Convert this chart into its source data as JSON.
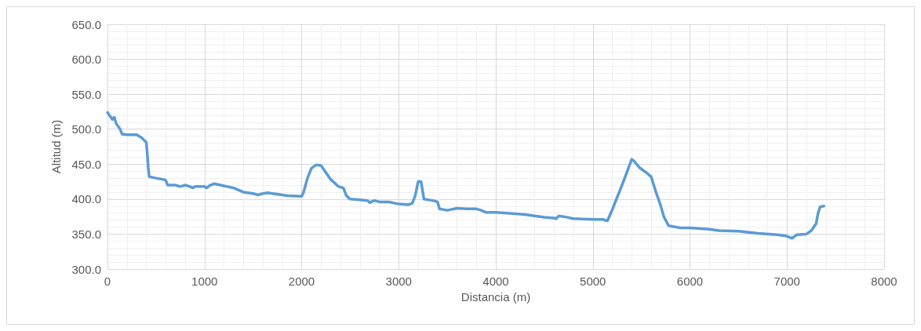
{
  "chart_data": {
    "type": "line",
    "xlabel": "Distancia (m)",
    "ylabel": "Altitud (m)",
    "xlim": [
      0,
      8000
    ],
    "xticks": [
      0,
      1000,
      2000,
      3000,
      4000,
      5000,
      6000,
      7000,
      8000
    ],
    "ylim": [
      300,
      650
    ],
    "yticks": [
      {
        "value": 300,
        "label": "300.0"
      },
      {
        "value": 350,
        "label": "350.0"
      },
      {
        "value": 400,
        "label": "400.0"
      },
      {
        "value": 450,
        "label": "450.0"
      },
      {
        "value": 500,
        "label": "500.0"
      },
      {
        "value": 550,
        "label": "550.0"
      },
      {
        "value": 600,
        "label": "600.0"
      },
      {
        "value": 650,
        "label": "650.0"
      }
    ],
    "grid": true,
    "marker": "none",
    "line_style": "solid",
    "series": [
      {
        "color": "#5b9bd5",
        "x": [
          0,
          20,
          50,
          70,
          90,
          130,
          150,
          200,
          300,
          350,
          380,
          400,
          410,
          420,
          430,
          500,
          580,
          600,
          620,
          700,
          750,
          800,
          850,
          880,
          900,
          1000,
          1020,
          1060,
          1100,
          1200,
          1300,
          1400,
          1500,
          1550,
          1600,
          1650,
          1700,
          1800,
          1850,
          2000,
          2020,
          2060,
          2100,
          2150,
          2200,
          2240,
          2300,
          2380,
          2430,
          2460,
          2500,
          2600,
          2680,
          2700,
          2750,
          2800,
          2900,
          3000,
          3100,
          3140,
          3170,
          3200,
          3230,
          3260,
          3350,
          3400,
          3420,
          3500,
          3600,
          3700,
          3800,
          3850,
          3900,
          4000,
          4200,
          4300,
          4400,
          4500,
          4600,
          4620,
          4650,
          4700,
          4800,
          5000,
          5100,
          5150,
          5200,
          5300,
          5400,
          5420,
          5480,
          5550,
          5600,
          5650,
          5700,
          5730,
          5780,
          5900,
          6000,
          6200,
          6300,
          6500,
          6700,
          6900,
          7000,
          7050,
          7100,
          7200,
          7250,
          7300,
          7320,
          7340,
          7380
        ],
        "values": [
          524,
          520,
          514,
          517,
          508,
          500,
          493,
          492,
          492,
          488,
          484,
          481,
          465,
          445,
          432,
          430,
          428,
          427,
          420,
          420,
          418,
          420,
          418,
          416,
          418,
          418,
          416,
          420,
          422,
          419,
          416,
          410,
          408,
          406,
          408,
          409,
          408,
          406,
          405,
          404,
          410,
          430,
          444,
          449,
          448,
          440,
          428,
          418,
          416,
          405,
          400,
          399,
          398,
          395,
          398,
          396,
          396,
          393,
          392,
          394,
          405,
          425,
          425,
          400,
          398,
          396,
          386,
          384,
          387,
          386,
          386,
          384,
          381,
          381,
          379,
          378,
          376,
          374,
          373,
          372,
          376,
          375,
          372,
          371,
          371,
          369,
          385,
          420,
          457,
          455,
          445,
          438,
          432,
          410,
          390,
          375,
          362,
          359,
          359,
          357,
          355,
          354,
          351,
          349,
          347,
          344,
          349,
          350,
          355,
          365,
          380,
          389,
          390
        ]
      }
    ]
  }
}
